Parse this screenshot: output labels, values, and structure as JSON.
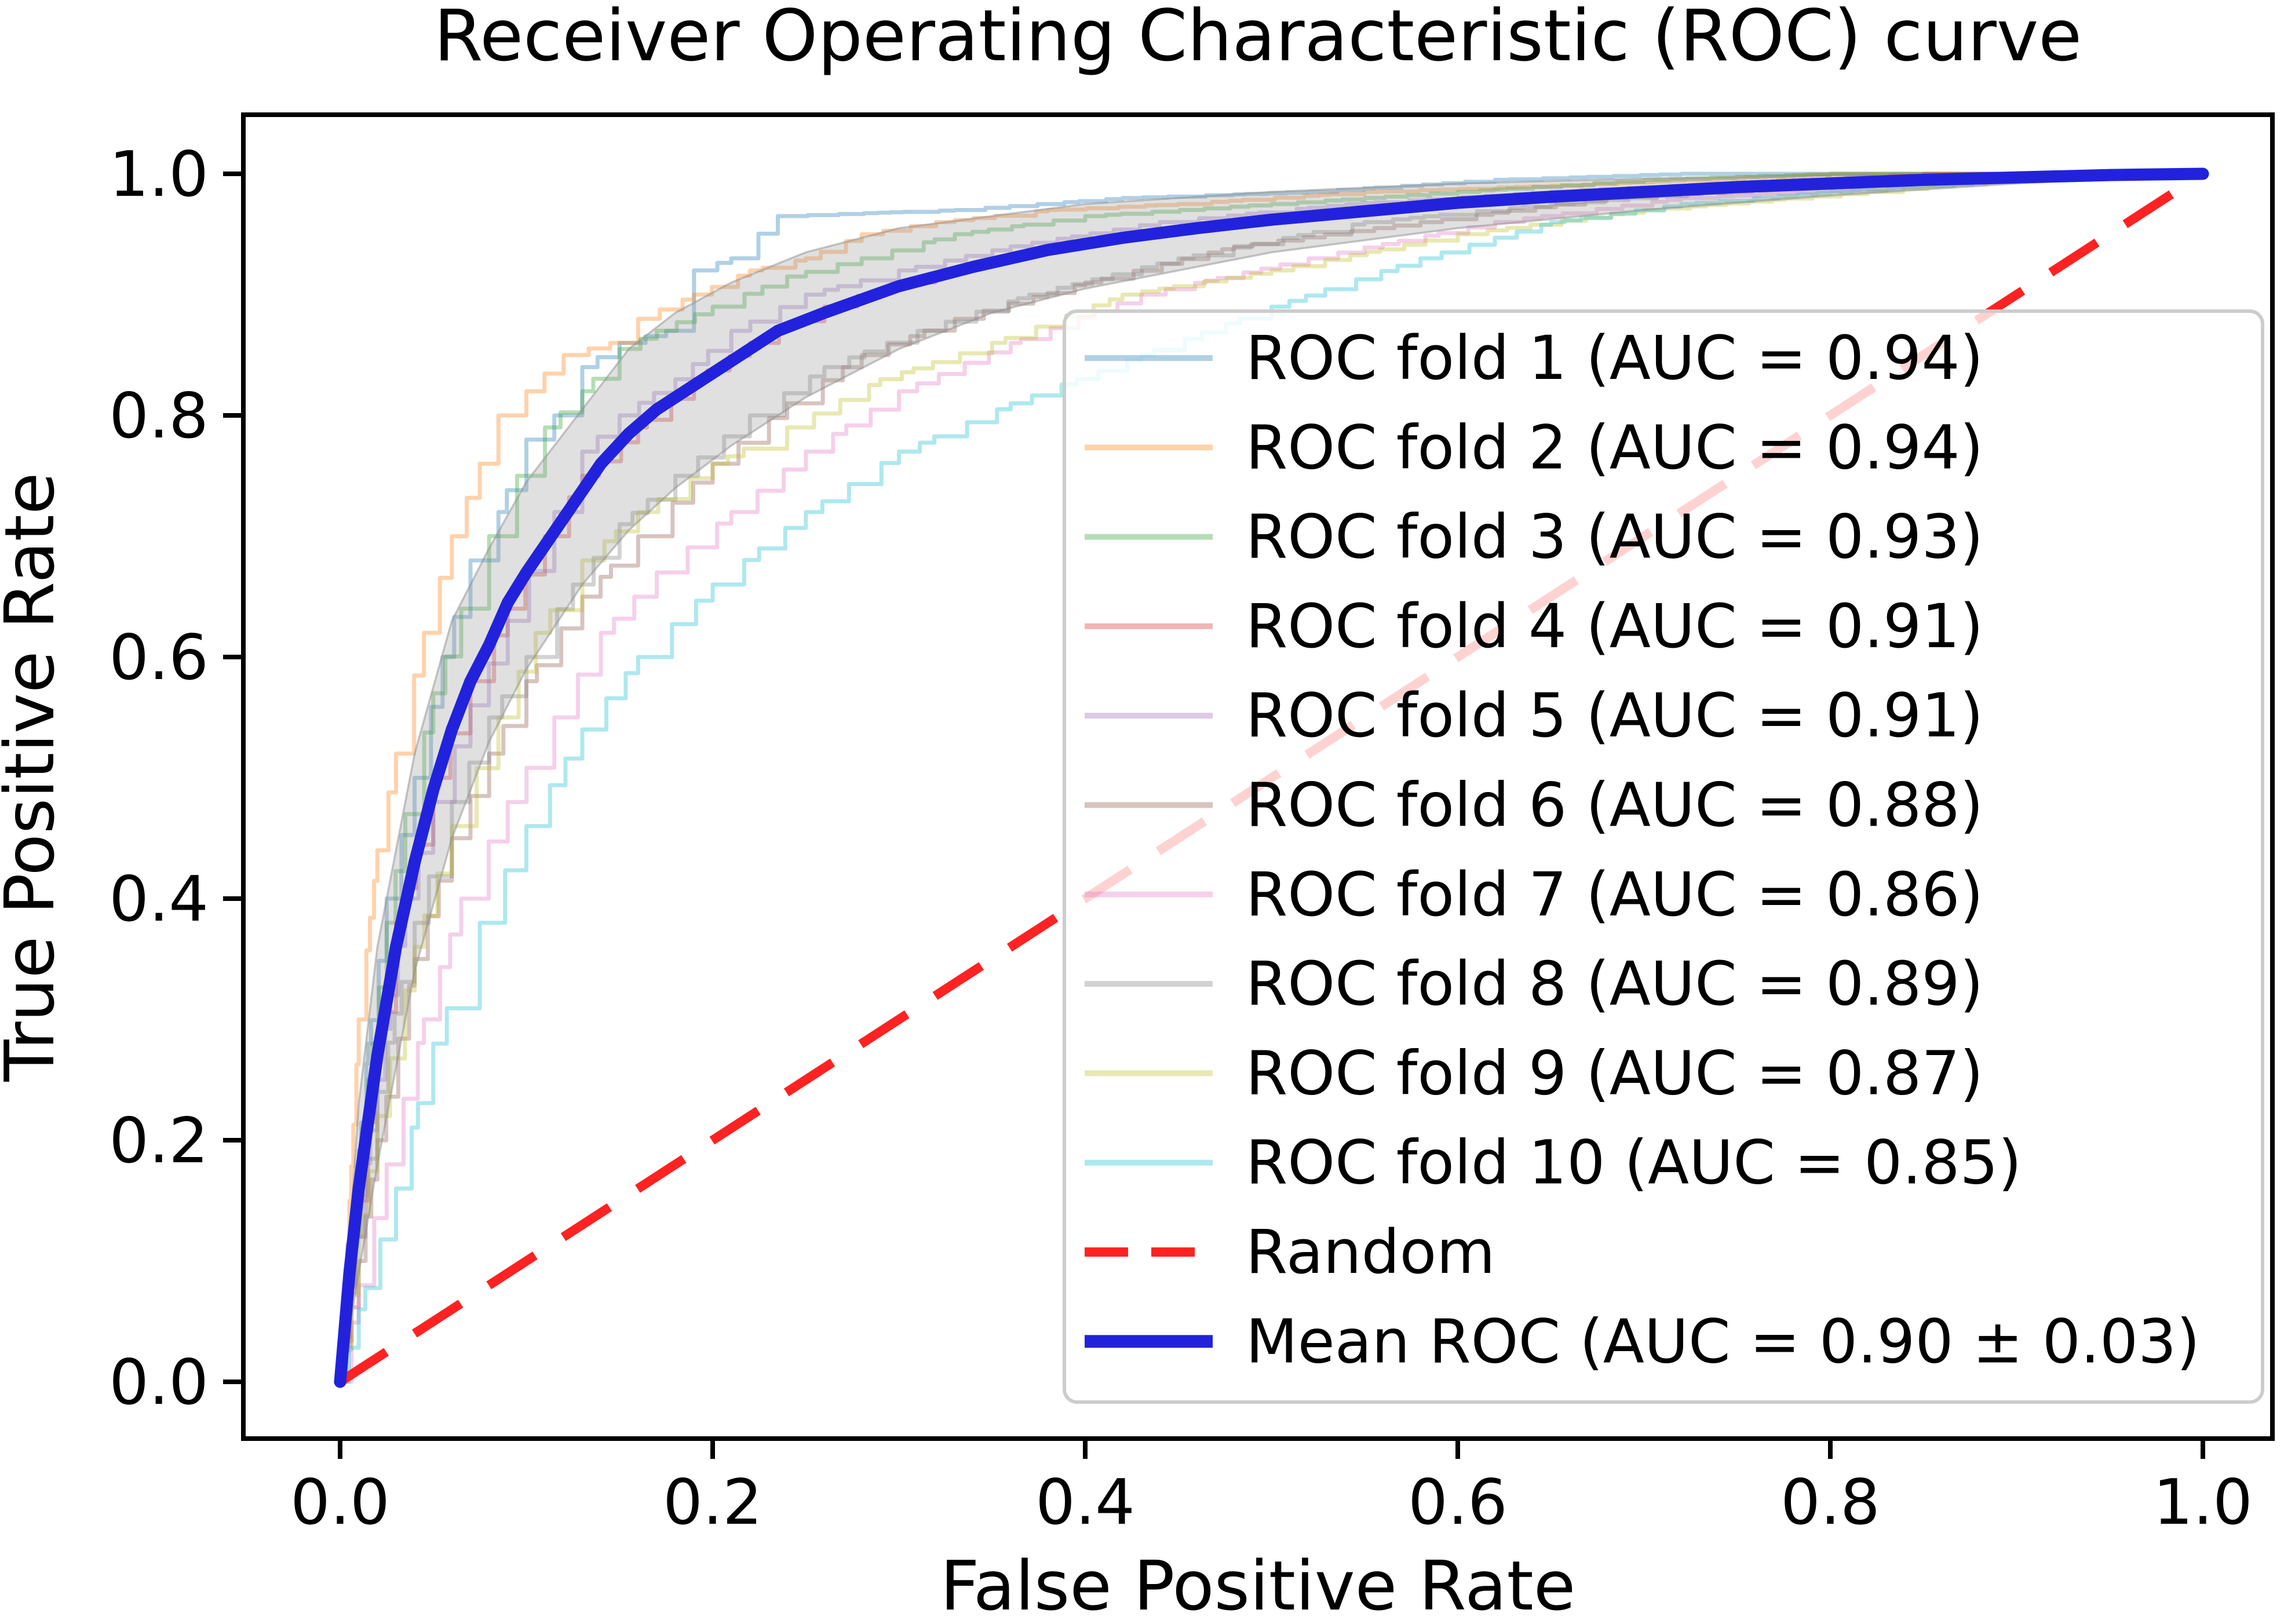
{
  "chart_data": {
    "type": "line",
    "title": "Receiver Operating Characteristic (ROC) curve",
    "xlabel": "False Positive Rate",
    "ylabel": "True Positive Rate",
    "xlim": [
      0.0,
      1.0
    ],
    "ylim": [
      0.0,
      1.0
    ],
    "grid": false,
    "legend_position": "lower right",
    "xticks": [
      "0.0",
      "0.2",
      "0.4",
      "0.6",
      "0.8",
      "1.0"
    ],
    "yticks": [
      "0.0",
      "0.2",
      "0.4",
      "0.6",
      "0.8",
      "1.0"
    ],
    "colors": {
      "random_line": "#ff2222",
      "mean_line": "#2222dd",
      "band_fill": "#999999",
      "band_edge": "#8f8f8f",
      "legend_border": "#cccccc",
      "axes": "#000000"
    },
    "folds": [
      {
        "label": "ROC fold 1 (AUC = 0.94)",
        "auc": 0.94,
        "color": "#1f77b4",
        "x": [
          0,
          0.005,
          0.015,
          0.025,
          0.04,
          0.055,
          0.07,
          0.085,
          0.1,
          0.115,
          0.13,
          0.15,
          0.175,
          0.19,
          0.21,
          0.235,
          0.33,
          0.42,
          0.52,
          0.62,
          0.72,
          1.0
        ],
        "y": [
          0,
          0.1,
          0.28,
          0.4,
          0.5,
          0.6,
          0.68,
          0.72,
          0.78,
          0.8,
          0.84,
          0.86,
          0.87,
          0.92,
          0.93,
          0.965,
          0.97,
          0.98,
          0.985,
          0.995,
          1.0,
          1.0
        ]
      },
      {
        "label": "ROC fold 2 (AUC = 0.94)",
        "auc": 0.94,
        "color": "#ff7f0e",
        "x": [
          0,
          0.005,
          0.01,
          0.02,
          0.03,
          0.045,
          0.06,
          0.075,
          0.085,
          0.1,
          0.12,
          0.145,
          0.16,
          0.19,
          0.22,
          0.25,
          0.28,
          0.32,
          0.38,
          0.45,
          0.55,
          0.65,
          0.8,
          1.0
        ],
        "y": [
          0,
          0.15,
          0.3,
          0.44,
          0.52,
          0.62,
          0.7,
          0.76,
          0.8,
          0.82,
          0.85,
          0.86,
          0.88,
          0.9,
          0.92,
          0.93,
          0.95,
          0.96,
          0.97,
          0.975,
          0.985,
          0.99,
          1.0,
          1.0
        ]
      },
      {
        "label": "ROC fold 3 (AUC = 0.93)",
        "auc": 0.93,
        "color": "#2ca02c",
        "x": [
          0,
          0.005,
          0.015,
          0.025,
          0.035,
          0.05,
          0.065,
          0.08,
          0.095,
          0.11,
          0.13,
          0.15,
          0.17,
          0.2,
          0.24,
          0.28,
          0.33,
          0.4,
          0.5,
          0.6,
          0.7,
          0.8,
          1.0
        ],
        "y": [
          0,
          0.12,
          0.25,
          0.38,
          0.47,
          0.57,
          0.64,
          0.7,
          0.75,
          0.79,
          0.82,
          0.855,
          0.87,
          0.89,
          0.915,
          0.93,
          0.95,
          0.965,
          0.975,
          0.985,
          0.995,
          1.0,
          1.0
        ]
      },
      {
        "label": "ROC fold 4 (AUC = 0.91)",
        "auc": 0.91,
        "color": "#d62728",
        "x": [
          0,
          0.01,
          0.02,
          0.03,
          0.05,
          0.07,
          0.09,
          0.11,
          0.13,
          0.16,
          0.19,
          0.22,
          0.26,
          0.3,
          0.35,
          0.42,
          0.5,
          0.6,
          0.72,
          0.85,
          1.0
        ],
        "y": [
          0,
          0.15,
          0.28,
          0.38,
          0.5,
          0.58,
          0.64,
          0.7,
          0.75,
          0.79,
          0.83,
          0.86,
          0.89,
          0.91,
          0.93,
          0.95,
          0.965,
          0.98,
          0.99,
          1.0,
          1.0
        ]
      },
      {
        "label": "ROC fold 5 (AUC = 0.91)",
        "auc": 0.91,
        "color": "#9467bd",
        "x": [
          0,
          0.008,
          0.02,
          0.035,
          0.05,
          0.07,
          0.09,
          0.115,
          0.13,
          0.15,
          0.18,
          0.21,
          0.25,
          0.3,
          0.36,
          0.44,
          0.54,
          0.65,
          0.78,
          0.88,
          1.0
        ],
        "y": [
          0,
          0.12,
          0.25,
          0.4,
          0.48,
          0.56,
          0.63,
          0.72,
          0.77,
          0.8,
          0.83,
          0.87,
          0.9,
          0.92,
          0.94,
          0.96,
          0.975,
          0.985,
          0.995,
          1.0,
          1.0
        ]
      },
      {
        "label": "ROC fold 6 (AUC = 0.88)",
        "auc": 0.88,
        "color": "#8c564b",
        "x": [
          0,
          0.01,
          0.02,
          0.04,
          0.06,
          0.08,
          0.1,
          0.13,
          0.16,
          0.2,
          0.24,
          0.28,
          0.33,
          0.4,
          0.48,
          0.58,
          0.68,
          0.8,
          0.92,
          1.0
        ],
        "y": [
          0,
          0.1,
          0.2,
          0.35,
          0.45,
          0.52,
          0.58,
          0.65,
          0.7,
          0.76,
          0.81,
          0.85,
          0.88,
          0.91,
          0.94,
          0.96,
          0.98,
          0.99,
          1.0,
          1.0
        ]
      },
      {
        "label": "ROC fold 7 (AUC = 0.86)",
        "auc": 0.86,
        "color": "#e377c2",
        "x": [
          0,
          0.01,
          0.025,
          0.045,
          0.065,
          0.09,
          0.115,
          0.14,
          0.17,
          0.21,
          0.25,
          0.3,
          0.36,
          0.43,
          0.52,
          0.62,
          0.72,
          0.85,
          0.95,
          1.0
        ],
        "y": [
          0,
          0.08,
          0.18,
          0.3,
          0.4,
          0.48,
          0.55,
          0.62,
          0.67,
          0.72,
          0.77,
          0.82,
          0.86,
          0.9,
          0.93,
          0.96,
          0.98,
          0.99,
          1.0,
          1.0
        ]
      },
      {
        "label": "ROC fold 8 (AUC = 0.89)",
        "auc": 0.89,
        "color": "#7f7f7f",
        "x": [
          0,
          0.008,
          0.02,
          0.04,
          0.06,
          0.08,
          0.1,
          0.125,
          0.15,
          0.18,
          0.22,
          0.26,
          0.31,
          0.37,
          0.45,
          0.55,
          0.65,
          0.78,
          0.9,
          1.0
        ],
        "y": [
          0,
          0.12,
          0.24,
          0.38,
          0.48,
          0.55,
          0.6,
          0.66,
          0.71,
          0.75,
          0.8,
          0.84,
          0.87,
          0.9,
          0.93,
          0.96,
          0.975,
          0.99,
          1.0,
          1.0
        ]
      },
      {
        "label": "ROC fold 9 (AUC = 0.87)",
        "auc": 0.87,
        "color": "#bcbd22",
        "x": [
          0,
          0.01,
          0.02,
          0.04,
          0.06,
          0.085,
          0.105,
          0.13,
          0.16,
          0.2,
          0.24,
          0.29,
          0.35,
          0.42,
          0.5,
          0.6,
          0.7,
          0.82,
          0.93,
          1.0
        ],
        "y": [
          0,
          0.12,
          0.22,
          0.36,
          0.46,
          0.55,
          0.62,
          0.68,
          0.72,
          0.76,
          0.79,
          0.83,
          0.86,
          0.9,
          0.92,
          0.95,
          0.97,
          0.985,
          1.0,
          1.0
        ]
      },
      {
        "label": "ROC fold 10 (AUC = 0.85)",
        "auc": 0.85,
        "color": "#17becf",
        "x": [
          0,
          0.01,
          0.03,
          0.05,
          0.075,
          0.1,
          0.13,
          0.16,
          0.2,
          0.25,
          0.3,
          0.36,
          0.43,
          0.5,
          0.58,
          0.65,
          0.72,
          0.8,
          0.9,
          0.97,
          1.0
        ],
        "y": [
          0,
          0.06,
          0.16,
          0.28,
          0.38,
          0.46,
          0.54,
          0.6,
          0.66,
          0.72,
          0.77,
          0.81,
          0.85,
          0.89,
          0.93,
          0.96,
          0.975,
          0.985,
          0.995,
          1.0,
          1.0
        ]
      }
    ],
    "random_line": {
      "label": "Random",
      "style": "dashed",
      "x": [
        0,
        1
      ],
      "y": [
        0,
        1
      ]
    },
    "mean_roc": {
      "label": "Mean ROC (AUC = 0.90 ± 0.03)",
      "auc": "0.90",
      "auc_std": "0.03",
      "x": [
        0,
        0.005,
        0.01,
        0.02,
        0.03,
        0.04,
        0.05,
        0.06,
        0.07,
        0.08,
        0.09,
        0.1,
        0.12,
        0.14,
        0.155,
        0.17,
        0.19,
        0.21,
        0.235,
        0.26,
        0.3,
        0.34,
        0.38,
        0.42,
        0.46,
        0.5,
        0.55,
        0.6,
        0.65,
        0.7,
        0.75,
        0.8,
        0.85,
        0.9,
        0.95,
        1.0
      ],
      "y": [
        0,
        0.09,
        0.16,
        0.27,
        0.36,
        0.43,
        0.49,
        0.54,
        0.58,
        0.61,
        0.645,
        0.67,
        0.715,
        0.76,
        0.785,
        0.805,
        0.825,
        0.845,
        0.87,
        0.885,
        0.907,
        0.923,
        0.937,
        0.947,
        0.955,
        0.962,
        0.969,
        0.976,
        0.981,
        0.985,
        0.989,
        0.992,
        0.995,
        0.997,
        0.999,
        1.0
      ]
    },
    "std_band": {
      "x": [
        0,
        0.01,
        0.02,
        0.04,
        0.06,
        0.08,
        0.1,
        0.13,
        0.155,
        0.18,
        0.21,
        0.25,
        0.3,
        0.35,
        0.4,
        0.5,
        0.6,
        0.7,
        0.8,
        0.9,
        1.0
      ],
      "lower": [
        0,
        0.09,
        0.18,
        0.34,
        0.45,
        0.53,
        0.59,
        0.66,
        0.705,
        0.74,
        0.775,
        0.815,
        0.855,
        0.885,
        0.905,
        0.935,
        0.955,
        0.97,
        0.982,
        0.992,
        1.0
      ],
      "upper": [
        0,
        0.23,
        0.36,
        0.52,
        0.63,
        0.69,
        0.745,
        0.805,
        0.855,
        0.885,
        0.91,
        0.935,
        0.955,
        0.965,
        0.975,
        0.985,
        0.992,
        0.996,
        0.999,
        1.0,
        1.0
      ]
    }
  }
}
